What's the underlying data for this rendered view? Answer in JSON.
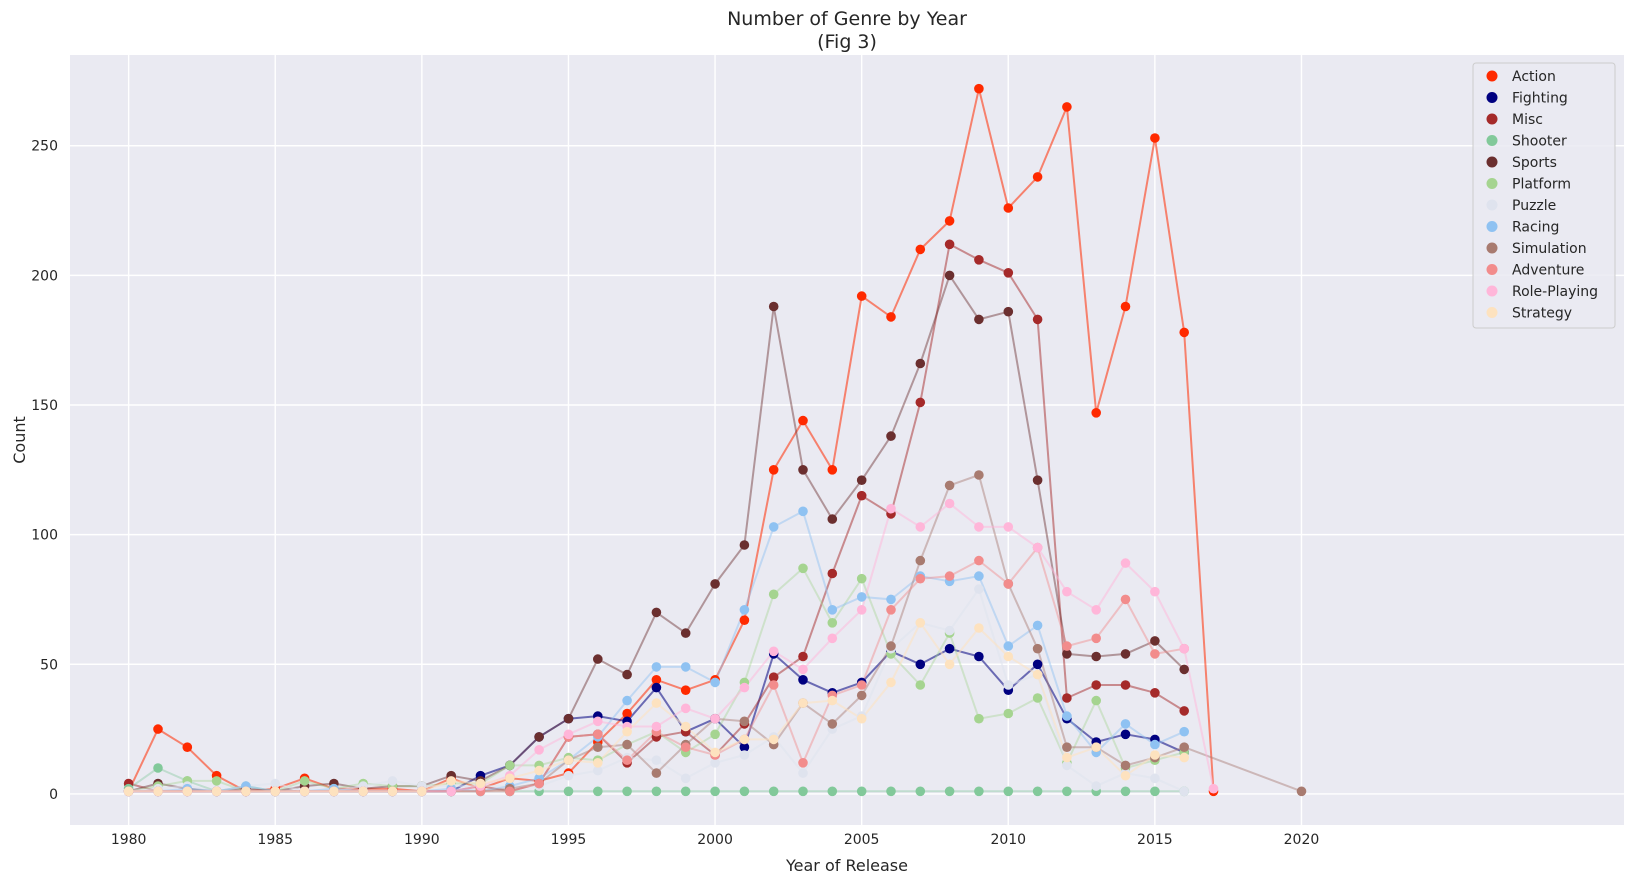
{
  "chart_data": {
    "type": "line",
    "title": "Number of Genre by Year",
    "subtitle": "(Fig 3)",
    "xlabel": "Year of Release",
    "ylabel": "Count",
    "xlim": [
      1978,
      2031
    ],
    "ylim": [
      -12,
      285
    ],
    "xticks": [
      1980,
      1985,
      1990,
      1995,
      2000,
      2005,
      2010,
      2015,
      2020
    ],
    "yticks": [
      0,
      50,
      100,
      150,
      200,
      250
    ],
    "grid": true,
    "legend_position": "top-right",
    "series": [
      {
        "name": "Action",
        "color": "#ff2a00",
        "line_alpha": 0.55,
        "x": [
          1980,
          1981,
          1982,
          1983,
          1984,
          1985,
          1986,
          1987,
          1988,
          1989,
          1990,
          1991,
          1992,
          1993,
          1994,
          1995,
          1996,
          1997,
          1998,
          1999,
          2000,
          2001,
          2002,
          2003,
          2004,
          2005,
          2006,
          2007,
          2008,
          2009,
          2010,
          2011,
          2012,
          2013,
          2014,
          2015,
          2016,
          2017
        ],
        "y": [
          1,
          25,
          18,
          7,
          1,
          2,
          6,
          2,
          2,
          2,
          1,
          6,
          2,
          6,
          5,
          8,
          20,
          31,
          44,
          40,
          44,
          67,
          125,
          144,
          125,
          192,
          184,
          210,
          221,
          272,
          226,
          238,
          265,
          147,
          188,
          253,
          178,
          1
        ]
      },
      {
        "name": "Fighting",
        "color": "#000080",
        "line_alpha": 0.55,
        "x": [
          1980,
          1981,
          1982,
          1983,
          1984,
          1985,
          1986,
          1987,
          1988,
          1989,
          1990,
          1991,
          1992,
          1993,
          1994,
          1995,
          1996,
          1997,
          1998,
          1999,
          2000,
          2001,
          2002,
          2003,
          2004,
          2005,
          2006,
          2007,
          2008,
          2009,
          2010,
          2011,
          2012,
          2013,
          2014,
          2015,
          2016
        ],
        "y": [
          1,
          1,
          1,
          1,
          1,
          1,
          1,
          1,
          1,
          1,
          1,
          1,
          7,
          11,
          22,
          29,
          30,
          28,
          41,
          24,
          29,
          18,
          54,
          44,
          39,
          43,
          55,
          50,
          56,
          53,
          40,
          50,
          29,
          20,
          23,
          21,
          16
        ]
      },
      {
        "name": "Misc",
        "color": "#a52a2a",
        "line_alpha": 0.5,
        "x": [
          1980,
          1981,
          1982,
          1983,
          1984,
          1985,
          1986,
          1987,
          1988,
          1989,
          1990,
          1991,
          1992,
          1993,
          1994,
          1995,
          1996,
          1997,
          1998,
          1999,
          2000,
          2001,
          2002,
          2003,
          2004,
          2005,
          2006,
          2007,
          2008,
          2009,
          2010,
          2011,
          2012,
          2013,
          2014,
          2015,
          2016
        ],
        "y": [
          4,
          1,
          1,
          1,
          1,
          1,
          1,
          1,
          1,
          1,
          1,
          1,
          3,
          1,
          4,
          22,
          23,
          12,
          22,
          24,
          15,
          27,
          45,
          53,
          85,
          115,
          108,
          151,
          212,
          206,
          201,
          183,
          37,
          42,
          42,
          39,
          32
        ]
      },
      {
        "name": "Shooter",
        "color": "#82c99a",
        "line_alpha": 0.4,
        "x": [
          1980,
          1981,
          1982,
          1983,
          1984,
          1985,
          1986,
          1987,
          1988,
          1989,
          1990,
          1991,
          1992,
          1993,
          1994,
          1995,
          1996,
          1997,
          1998,
          1999,
          2000,
          2001,
          2002,
          2003,
          2004,
          2005,
          2006,
          2007,
          2008,
          2009,
          2010,
          2011,
          2012,
          2013,
          2014,
          2015,
          2016
        ],
        "y": [
          2,
          10,
          5,
          1,
          3,
          1,
          1,
          1,
          1,
          1,
          1,
          1,
          1,
          1,
          1,
          1,
          1,
          1,
          1,
          1,
          1,
          1,
          1,
          1,
          1,
          1,
          1,
          1,
          1,
          1,
          1,
          1,
          1,
          1,
          1,
          1,
          1
        ]
      },
      {
        "name": "Sports",
        "color": "#6b2f2f",
        "line_alpha": 0.45,
        "x": [
          1980,
          1981,
          1982,
          1983,
          1984,
          1985,
          1986,
          1987,
          1988,
          1989,
          1990,
          1991,
          1992,
          1993,
          1994,
          1995,
          1996,
          1997,
          1998,
          1999,
          2000,
          2001,
          2002,
          2003,
          2004,
          2005,
          2006,
          2007,
          2008,
          2009,
          2010,
          2011,
          2012,
          2013,
          2014,
          2015,
          2016
        ],
        "y": [
          1,
          4,
          2,
          1,
          2,
          1,
          3,
          4,
          2,
          3,
          3,
          7,
          5,
          11,
          22,
          29,
          52,
          46,
          70,
          62,
          81,
          96,
          188,
          125,
          106,
          121,
          138,
          166,
          200,
          183,
          186,
          121,
          54,
          53,
          54,
          59,
          48
        ]
      },
      {
        "name": "Platform",
        "color": "#a5d490",
        "line_alpha": 0.4,
        "x": [
          1980,
          1981,
          1982,
          1983,
          1984,
          1985,
          1986,
          1987,
          1988,
          1989,
          1990,
          1991,
          1992,
          1993,
          1994,
          1995,
          1996,
          1997,
          1998,
          1999,
          2000,
          2001,
          2002,
          2003,
          2004,
          2005,
          2006,
          2007,
          2008,
          2009,
          2010,
          2011,
          2012,
          2013,
          2014,
          2015,
          2016
        ],
        "y": [
          1,
          3,
          5,
          5,
          1,
          1,
          5,
          2,
          4,
          3,
          3,
          4,
          4,
          11,
          11,
          14,
          13,
          19,
          24,
          16,
          23,
          43,
          77,
          87,
          66,
          83,
          54,
          42,
          62,
          29,
          31,
          37,
          12,
          36,
          10,
          13,
          16
        ]
      },
      {
        "name": "Puzzle",
        "color": "#dfe3ee",
        "line_alpha": 0.55,
        "x": [
          1980,
          1981,
          1982,
          1983,
          1984,
          1985,
          1986,
          1987,
          1988,
          1989,
          1990,
          1991,
          1992,
          1993,
          1994,
          1995,
          1996,
          1997,
          1998,
          1999,
          2000,
          2001,
          2002,
          2003,
          2004,
          2005,
          2006,
          2007,
          2008,
          2009,
          2010,
          2011,
          2012,
          2013,
          2014,
          2015,
          2016
        ],
        "y": [
          1,
          2,
          3,
          1,
          3,
          4,
          1,
          1,
          3,
          5,
          3,
          3,
          3,
          3,
          3,
          7,
          9,
          14,
          13,
          6,
          12,
          15,
          22,
          8,
          25,
          30,
          56,
          66,
          63,
          79,
          42,
          46,
          11,
          3,
          8,
          6,
          1
        ]
      },
      {
        "name": "Racing",
        "color": "#8fc2f2",
        "line_alpha": 0.45,
        "x": [
          1980,
          1981,
          1982,
          1983,
          1984,
          1985,
          1986,
          1987,
          1988,
          1989,
          1990,
          1991,
          1992,
          1993,
          1994,
          1995,
          1996,
          1997,
          1998,
          1999,
          2000,
          2001,
          2002,
          2003,
          2004,
          2005,
          2006,
          2007,
          2008,
          2009,
          2010,
          2011,
          2012,
          2013,
          2014,
          2015,
          2016
        ],
        "y": [
          1,
          1,
          2,
          1,
          3,
          1,
          1,
          2,
          1,
          1,
          1,
          2,
          1,
          3,
          6,
          13,
          22,
          36,
          49,
          49,
          43,
          71,
          103,
          109,
          71,
          76,
          75,
          84,
          82,
          84,
          57,
          65,
          30,
          16,
          27,
          19,
          24
        ]
      },
      {
        "name": "Simulation",
        "color": "#a87b70",
        "line_alpha": 0.45,
        "x": [
          1980,
          1981,
          1982,
          1983,
          1984,
          1985,
          1986,
          1987,
          1988,
          1989,
          1990,
          1991,
          1992,
          1993,
          1994,
          1995,
          1996,
          1997,
          1998,
          1999,
          2000,
          2001,
          2002,
          2003,
          2004,
          2005,
          2006,
          2007,
          2008,
          2009,
          2010,
          2011,
          2012,
          2013,
          2014,
          2015,
          2016,
          2020
        ],
        "y": [
          1,
          1,
          1,
          1,
          1,
          1,
          1,
          1,
          1,
          1,
          1,
          1,
          1,
          2,
          4,
          13,
          18,
          19,
          8,
          19,
          29,
          28,
          19,
          35,
          27,
          38,
          57,
          90,
          119,
          123,
          81,
          56,
          18,
          18,
          11,
          14,
          18,
          1
        ]
      },
      {
        "name": "Adventure",
        "color": "#f28c8c",
        "line_alpha": 0.45,
        "x": [
          1980,
          1981,
          1982,
          1983,
          1984,
          1985,
          1986,
          1987,
          1988,
          1989,
          1990,
          1991,
          1992,
          1993,
          1994,
          1995,
          1996,
          1997,
          1998,
          1999,
          2000,
          2001,
          2002,
          2003,
          2004,
          2005,
          2006,
          2007,
          2008,
          2009,
          2010,
          2011,
          2012,
          2013,
          2014,
          2015,
          2016
        ],
        "y": [
          1,
          1,
          1,
          1,
          1,
          1,
          1,
          1,
          1,
          1,
          1,
          1,
          1,
          1,
          4,
          22,
          23,
          13,
          24,
          18,
          15,
          21,
          42,
          12,
          38,
          42,
          71,
          83,
          84,
          90,
          81,
          95,
          57,
          60,
          75,
          54,
          56
        ]
      },
      {
        "name": "Role-Playing",
        "color": "#ffb6d9",
        "line_alpha": 0.5,
        "x": [
          1980,
          1981,
          1982,
          1983,
          1984,
          1985,
          1986,
          1987,
          1988,
          1989,
          1990,
          1991,
          1992,
          1993,
          1994,
          1995,
          1996,
          1997,
          1998,
          1999,
          2000,
          2001,
          2002,
          2003,
          2004,
          2005,
          2006,
          2007,
          2008,
          2009,
          2010,
          2011,
          2012,
          2013,
          2014,
          2015,
          2016,
          2017
        ],
        "y": [
          1,
          1,
          1,
          1,
          1,
          1,
          1,
          1,
          1,
          1,
          1,
          1,
          3,
          7,
          17,
          23,
          28,
          26,
          26,
          33,
          29,
          41,
          55,
          48,
          60,
          71,
          110,
          103,
          112,
          103,
          103,
          95,
          78,
          71,
          89,
          78,
          56,
          2
        ]
      },
      {
        "name": "Strategy",
        "color": "#fde2bf",
        "line_alpha": 0.55,
        "x": [
          1980,
          1981,
          1982,
          1983,
          1984,
          1985,
          1986,
          1987,
          1988,
          1989,
          1990,
          1991,
          1992,
          1993,
          1994,
          1995,
          1996,
          1997,
          1998,
          1999,
          2000,
          2001,
          2002,
          2003,
          2004,
          2005,
          2006,
          2007,
          2008,
          2009,
          2010,
          2011,
          2012,
          2013,
          2014,
          2015,
          2016
        ],
        "y": [
          1,
          1,
          1,
          1,
          1,
          1,
          1,
          1,
          1,
          1,
          1,
          5,
          4,
          6,
          9,
          13,
          12,
          24,
          35,
          26,
          16,
          21,
          21,
          35,
          36,
          29,
          43,
          66,
          50,
          64,
          53,
          46,
          14,
          18,
          7,
          15,
          14
        ]
      }
    ]
  }
}
